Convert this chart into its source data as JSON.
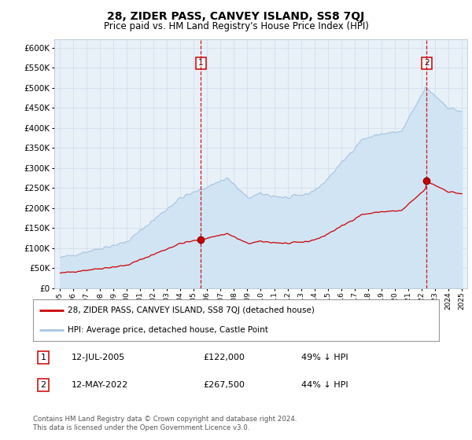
{
  "title": "28, ZIDER PASS, CANVEY ISLAND, SS8 7QJ",
  "subtitle": "Price paid vs. HM Land Registry's House Price Index (HPI)",
  "hpi_label": "HPI: Average price, detached house, Castle Point",
  "property_label": "28, ZIDER PASS, CANVEY ISLAND, SS8 7QJ (detached house)",
  "annotation1": {
    "num": "1",
    "date": "12-JUL-2005",
    "price": "£122,000",
    "pct": "49% ↓ HPI",
    "x_year": 2005.54,
    "y_val": 122000
  },
  "annotation2": {
    "num": "2",
    "date": "12-MAY-2022",
    "price": "£267,500",
    "pct": "44% ↓ HPI",
    "x_year": 2022.37,
    "y_val": 267500
  },
  "footer": "Contains HM Land Registry data © Crown copyright and database right 2024.\nThis data is licensed under the Open Government Licence v3.0.",
  "hpi_color": "#a8c4e0",
  "hpi_fill_color": "#d0e4f4",
  "property_color": "#cc0000",
  "background_color": "#e8f0f8",
  "ylim": [
    0,
    620000
  ],
  "yticks": [
    0,
    50000,
    100000,
    150000,
    200000,
    250000,
    300000,
    350000,
    400000,
    450000,
    500000,
    550000,
    600000
  ],
  "xlim_start": 1994.6,
  "xlim_end": 2025.4
}
